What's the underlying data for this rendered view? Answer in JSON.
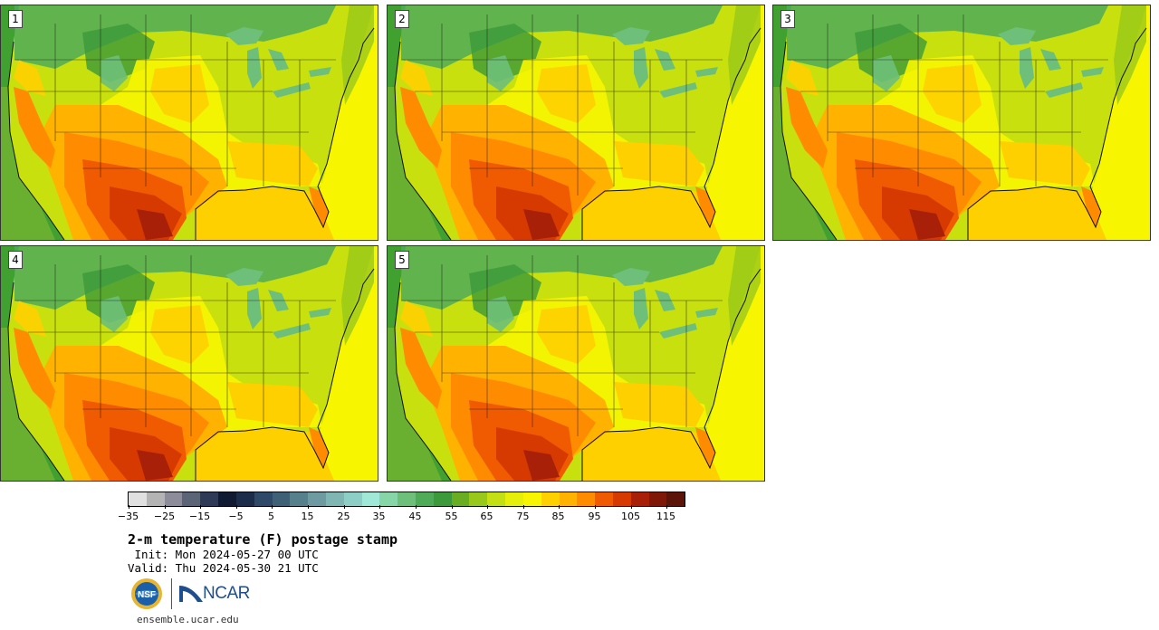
{
  "panels": [
    {
      "label": "1"
    },
    {
      "label": "2"
    },
    {
      "label": "3"
    },
    {
      "label": "4"
    },
    {
      "label": "5"
    }
  ],
  "colorbar": {
    "colors": [
      "#e0e0e0",
      "#b4b4b4",
      "#8c8c9a",
      "#5c6478",
      "#2f3a58",
      "#101a33",
      "#1c2d4c",
      "#2e4a68",
      "#3f6178",
      "#56808c",
      "#6e9aa2",
      "#7fb6b4",
      "#8dcfc6",
      "#a0e8d8",
      "#86d6a8",
      "#6ebf7a",
      "#4fab58",
      "#3c9a3a",
      "#6aad22",
      "#98c81a",
      "#c4e012",
      "#e6ef0a",
      "#f7f600",
      "#ffd000",
      "#ffb300",
      "#ff8c00",
      "#f05a00",
      "#d63a00",
      "#a82008",
      "#801808",
      "#5c1408"
    ],
    "tick_labels": [
      "−35",
      "−25",
      "−15",
      "−5",
      "5",
      "15",
      "25",
      "35",
      "45",
      "55",
      "65",
      "75",
      "85",
      "95",
      "105",
      "115"
    ]
  },
  "title": "2-m temperature (F) postage stamp",
  "init": " Init: Mon 2024-05-27 00 UTC",
  "valid": "Valid: Thu 2024-05-30 21 UTC",
  "logos": {
    "nsf": "NSF",
    "ncar": "NCAR"
  },
  "website": "ensemble.ucar.edu"
}
